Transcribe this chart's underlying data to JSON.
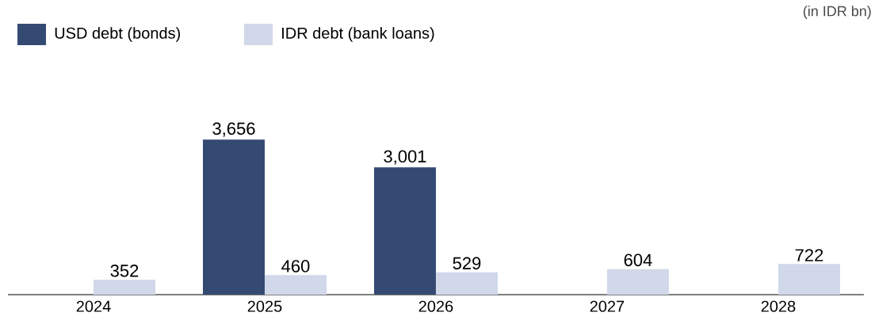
{
  "chart_data": {
    "type": "bar",
    "categories": [
      "2024",
      "2025",
      "2026",
      "2027",
      "2028"
    ],
    "series": [
      {
        "name": "USD debt (bonds)",
        "color": "#344a72",
        "values": [
          null,
          3656,
          3001,
          null,
          null
        ],
        "value_labels": [
          null,
          "3,656",
          "3,001",
          null,
          null
        ]
      },
      {
        "name": "IDR debt (bank loans)",
        "color": "#d0d8ea",
        "values": [
          352,
          460,
          529,
          604,
          722
        ],
        "value_labels": [
          "352",
          "460",
          "529",
          "604",
          "722"
        ]
      }
    ],
    "annotations": [
      "(in IDR bn)"
    ],
    "legend": "top left"
  }
}
